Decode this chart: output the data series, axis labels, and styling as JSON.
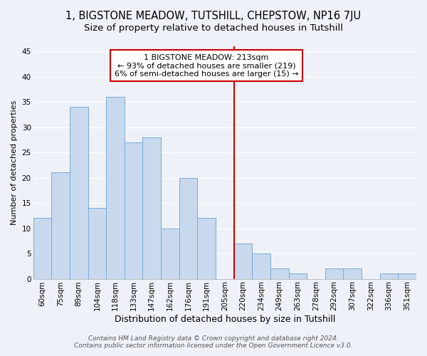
{
  "title": "1, BIGSTONE MEADOW, TUTSHILL, CHEPSTOW, NP16 7JU",
  "subtitle": "Size of property relative to detached houses in Tutshill",
  "xlabel": "Distribution of detached houses by size in Tutshill",
  "ylabel": "Number of detached properties",
  "bar_labels": [
    "60sqm",
    "75sqm",
    "89sqm",
    "104sqm",
    "118sqm",
    "133sqm",
    "147sqm",
    "162sqm",
    "176sqm",
    "191sqm",
    "205sqm",
    "220sqm",
    "234sqm",
    "249sqm",
    "263sqm",
    "278sqm",
    "292sqm",
    "307sqm",
    "322sqm",
    "336sqm",
    "351sqm"
  ],
  "bar_values": [
    12,
    21,
    34,
    14,
    36,
    27,
    28,
    10,
    20,
    12,
    0,
    7,
    5,
    2,
    1,
    0,
    2,
    2,
    0,
    1,
    1
  ],
  "bar_color": "#c8d9ee",
  "bar_edge_color": "#7aaad4",
  "vline_x_index": 11,
  "vline_color": "#cc0000",
  "annotation_title": "1 BIGSTONE MEADOW: 213sqm",
  "annotation_line1": "← 93% of detached houses are smaller (219)",
  "annotation_line2": "6% of semi-detached houses are larger (15) →",
  "annotation_box_color": "#ffffff",
  "annotation_box_edge": "#cc0000",
  "ylim": [
    0,
    46
  ],
  "yticks": [
    0,
    5,
    10,
    15,
    20,
    25,
    30,
    35,
    40,
    45
  ],
  "bg_color": "#eef2f8",
  "grid_color": "#ffffff",
  "footer1": "Contains HM Land Registry data © Crown copyright and database right 2024.",
  "footer2": "Contains public sector information licensed under the Open Government Licence v3.0.",
  "title_fontsize": 10.5,
  "subtitle_fontsize": 9.5,
  "xlabel_fontsize": 9,
  "ylabel_fontsize": 8,
  "tick_fontsize": 7.5,
  "annotation_fontsize": 8,
  "footer_fontsize": 6.5
}
